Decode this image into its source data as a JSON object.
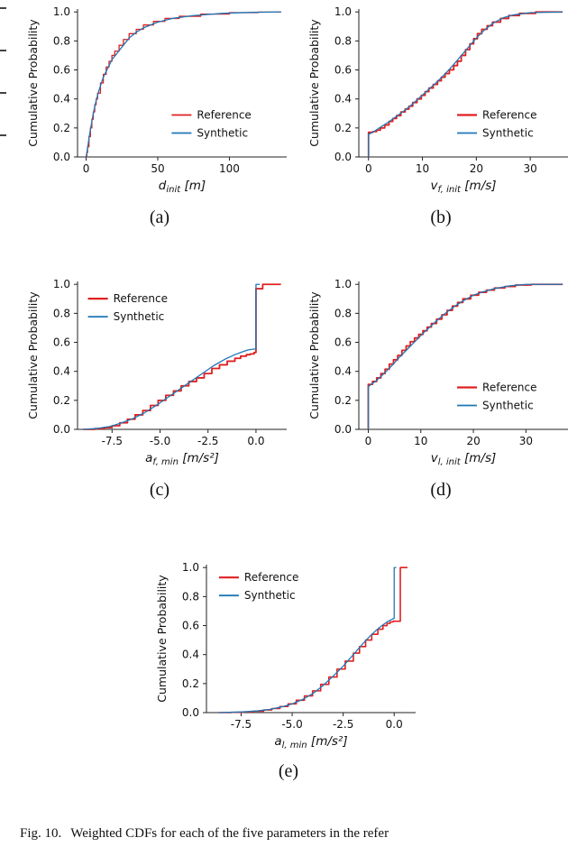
{
  "figure": {
    "subplot_labels": [
      "(a)",
      "(b)",
      "(c)",
      "(d)",
      "(e)"
    ],
    "caption_label": "Fig. 10.",
    "caption_text": "Weighted CDFs for each of the five parameters in the refer"
  },
  "style": {
    "axis_color": "#222222",
    "text_color": "#111111",
    "reference_color": "#e02020",
    "synthetic_color": "#1f77b4"
  },
  "chart_data": [
    {
      "id": "a",
      "type": "line",
      "ylabel": "Cumulative Probability",
      "xlabel": {
        "base": "d",
        "sub": "init",
        "unit": "[m]"
      },
      "xlim": [
        -6,
        140
      ],
      "ylim": [
        0,
        1.02
      ],
      "xticks": [
        [
          0,
          "0"
        ],
        [
          50,
          "50"
        ],
        [
          100,
          "100"
        ]
      ],
      "yticks": [
        [
          0,
          "0.0"
        ],
        [
          0.2,
          "0.2"
        ],
        [
          0.4,
          "0.4"
        ],
        [
          0.6,
          "0.6"
        ],
        [
          0.8,
          "0.8"
        ],
        [
          1.0,
          "1.0"
        ]
      ],
      "grid": false,
      "legend_pos": [
        0.45,
        0.68
      ],
      "series": [
        {
          "name": "Reference",
          "color": "#e02020",
          "width": 1.3,
          "step": true,
          "x": [
            0,
            0.5,
            1,
            2,
            3,
            4,
            5,
            6,
            7,
            8,
            10,
            12,
            14,
            16,
            18,
            20,
            23,
            26,
            30,
            35,
            40,
            47,
            55,
            65,
            80,
            100,
            120,
            136
          ],
          "y": [
            0,
            0.03,
            0.07,
            0.14,
            0.2,
            0.26,
            0.31,
            0.36,
            0.4,
            0.44,
            0.51,
            0.57,
            0.62,
            0.66,
            0.7,
            0.73,
            0.77,
            0.81,
            0.85,
            0.88,
            0.91,
            0.935,
            0.955,
            0.97,
            0.985,
            0.995,
            0.999,
            1.0
          ]
        },
        {
          "name": "Synthetic",
          "color": "#1f77b4",
          "width": 1.3,
          "step": false,
          "x": [
            0,
            1,
            2,
            3,
            5,
            7,
            9,
            12,
            15,
            18,
            22,
            26,
            30,
            35,
            40,
            50,
            60,
            75,
            95,
            115,
            136
          ],
          "y": [
            0,
            0.06,
            0.13,
            0.19,
            0.3,
            0.39,
            0.46,
            0.55,
            0.61,
            0.67,
            0.72,
            0.77,
            0.82,
            0.86,
            0.89,
            0.93,
            0.955,
            0.975,
            0.99,
            0.997,
            1.0
          ]
        }
      ]
    },
    {
      "id": "b",
      "type": "line",
      "ylabel": "Cumulative Probability",
      "xlabel": {
        "base": "v",
        "sub": "f, init",
        "unit": "[m/s]"
      },
      "xlim": [
        -1.8,
        37
      ],
      "ylim": [
        0,
        1.02
      ],
      "xticks": [
        [
          0,
          "0"
        ],
        [
          10,
          "10"
        ],
        [
          20,
          "20"
        ],
        [
          30,
          "30"
        ]
      ],
      "yticks": [
        [
          0,
          "0.0"
        ],
        [
          0.2,
          "0.2"
        ],
        [
          0.4,
          "0.4"
        ],
        [
          0.6,
          "0.6"
        ],
        [
          0.8,
          "0.8"
        ],
        [
          1.0,
          "1.0"
        ]
      ],
      "grid": false,
      "legend_pos": [
        0.47,
        0.68
      ],
      "series": [
        {
          "name": "Reference",
          "color": "#e02020",
          "width": 1.8,
          "step": true,
          "x": [
            0,
            0,
            0.8,
            1.5,
            2.2,
            3,
            3.8,
            4.5,
            5.2,
            6,
            6.8,
            7.5,
            8.2,
            9,
            9.8,
            10.5,
            11.2,
            12,
            12.8,
            13.5,
            14.2,
            15,
            15.8,
            16.5,
            17.2,
            18,
            18.8,
            19.5,
            20.2,
            21,
            22,
            23,
            24.5,
            26,
            28,
            31,
            36
          ],
          "y": [
            0,
            0.17,
            0.175,
            0.185,
            0.2,
            0.22,
            0.245,
            0.265,
            0.285,
            0.31,
            0.33,
            0.35,
            0.375,
            0.4,
            0.425,
            0.45,
            0.475,
            0.5,
            0.525,
            0.55,
            0.575,
            0.6,
            0.63,
            0.66,
            0.7,
            0.74,
            0.78,
            0.815,
            0.85,
            0.88,
            0.905,
            0.93,
            0.955,
            0.975,
            0.99,
            1.0,
            1.0
          ]
        },
        {
          "name": "Synthetic",
          "color": "#1f77b4",
          "width": 1.3,
          "step": false,
          "x": [
            0,
            0,
            1,
            2,
            3.5,
            5,
            6.5,
            8,
            9.5,
            11,
            12.5,
            14,
            15.5,
            17,
            18.5,
            20,
            21.5,
            23,
            25,
            27,
            30,
            36
          ],
          "y": [
            0,
            0.155,
            0.175,
            0.2,
            0.235,
            0.275,
            0.315,
            0.36,
            0.41,
            0.46,
            0.51,
            0.565,
            0.625,
            0.69,
            0.755,
            0.82,
            0.875,
            0.92,
            0.96,
            0.98,
            0.995,
            1.0
          ]
        }
      ]
    },
    {
      "id": "c",
      "type": "line",
      "ylabel": "Cumulative Probability",
      "xlabel": {
        "base": "a",
        "sub": "f, min",
        "unit": "[m/s²]"
      },
      "xlim": [
        -9.3,
        1.6
      ],
      "ylim": [
        0,
        1.02
      ],
      "xticks": [
        [
          -7.5,
          "-7.5"
        ],
        [
          -5.0,
          "-5.0"
        ],
        [
          -2.5,
          "-2.5"
        ],
        [
          0.0,
          "0.0"
        ]
      ],
      "yticks": [
        [
          0,
          "0.0"
        ],
        [
          0.2,
          "0.2"
        ],
        [
          0.4,
          "0.4"
        ],
        [
          0.6,
          "0.6"
        ],
        [
          0.8,
          "0.8"
        ],
        [
          1.0,
          "1.0"
        ]
      ],
      "grid": false,
      "legend_pos": [
        0.05,
        0.08
      ],
      "series": [
        {
          "name": "Reference",
          "color": "#e02020",
          "width": 1.8,
          "step": true,
          "x": [
            -9,
            -8.4,
            -7.9,
            -7.5,
            -7.1,
            -6.7,
            -6.3,
            -5.9,
            -5.5,
            -5.1,
            -4.7,
            -4.3,
            -3.9,
            -3.5,
            -3.1,
            -2.7,
            -2.3,
            -1.9,
            -1.5,
            -1.1,
            -0.8,
            -0.5,
            -0.3,
            -0.1,
            0,
            0,
            0.35,
            0.35,
            1.3
          ],
          "y": [
            0,
            0.005,
            0.012,
            0.025,
            0.045,
            0.07,
            0.1,
            0.13,
            0.165,
            0.2,
            0.235,
            0.265,
            0.3,
            0.33,
            0.355,
            0.385,
            0.42,
            0.445,
            0.47,
            0.49,
            0.505,
            0.515,
            0.52,
            0.53,
            0.535,
            0.97,
            0.97,
            1.0,
            1.0
          ]
        },
        {
          "name": "Synthetic",
          "color": "#1f77b4",
          "width": 1.3,
          "step": false,
          "x": [
            -9,
            -8.3,
            -7.6,
            -7,
            -6.4,
            -5.8,
            -5.2,
            -4.6,
            -4,
            -3.4,
            -2.8,
            -2.2,
            -1.6,
            -1.1,
            -0.7,
            -0.4,
            -0.15,
            0,
            0,
            0.2
          ],
          "y": [
            0,
            0.006,
            0.02,
            0.045,
            0.075,
            0.115,
            0.165,
            0.22,
            0.275,
            0.33,
            0.385,
            0.44,
            0.485,
            0.515,
            0.535,
            0.548,
            0.553,
            0.555,
            1.0,
            1.0
          ]
        }
      ]
    },
    {
      "id": "d",
      "type": "line",
      "ylabel": "Cumulative Probability",
      "xlabel": {
        "base": "v",
        "sub": "l, init",
        "unit": "[m/s]"
      },
      "xlim": [
        -1.8,
        38
      ],
      "ylim": [
        0,
        1.02
      ],
      "xticks": [
        [
          0,
          "0"
        ],
        [
          10,
          "10"
        ],
        [
          20,
          "20"
        ],
        [
          30,
          "30"
        ]
      ],
      "yticks": [
        [
          0,
          "0.0"
        ],
        [
          0.2,
          "0.2"
        ],
        [
          0.4,
          "0.4"
        ],
        [
          0.6,
          "0.6"
        ],
        [
          0.8,
          "0.8"
        ],
        [
          1.0,
          "1.0"
        ]
      ],
      "grid": false,
      "legend_pos": [
        0.47,
        0.68
      ],
      "series": [
        {
          "name": "Reference",
          "color": "#e02020",
          "width": 1.8,
          "step": true,
          "x": [
            0,
            0,
            0.8,
            1.6,
            2.4,
            3.2,
            4,
            4.8,
            5.6,
            6.4,
            7.2,
            8,
            8.8,
            9.6,
            10.4,
            11.2,
            12,
            13,
            14,
            15,
            16,
            17,
            18,
            19.5,
            21,
            22.5,
            24,
            26,
            28,
            31,
            37
          ],
          "y": [
            0,
            0.31,
            0.33,
            0.355,
            0.385,
            0.415,
            0.45,
            0.48,
            0.51,
            0.545,
            0.575,
            0.605,
            0.63,
            0.655,
            0.68,
            0.705,
            0.73,
            0.76,
            0.79,
            0.82,
            0.85,
            0.875,
            0.9,
            0.925,
            0.945,
            0.96,
            0.975,
            0.985,
            0.995,
            1.0,
            1.0
          ]
        },
        {
          "name": "Synthetic",
          "color": "#1f77b4",
          "width": 1.3,
          "step": false,
          "x": [
            0,
            0,
            1.5,
            3,
            4.5,
            6,
            7.5,
            9,
            10.5,
            12,
            13.5,
            15,
            16.5,
            18,
            20,
            22,
            24,
            27,
            30,
            37
          ],
          "y": [
            0,
            0.295,
            0.335,
            0.385,
            0.44,
            0.5,
            0.555,
            0.61,
            0.665,
            0.715,
            0.765,
            0.81,
            0.85,
            0.885,
            0.925,
            0.95,
            0.97,
            0.99,
            1.0,
            1.0
          ]
        }
      ]
    },
    {
      "id": "e",
      "type": "line",
      "ylabel": "Cumulative Probability",
      "xlabel": {
        "base": "a",
        "sub": "l, min",
        "unit": "[m/s²]"
      },
      "xlim": [
        -9.2,
        1.05
      ],
      "ylim": [
        0,
        1.02
      ],
      "xticks": [
        [
          -7.5,
          "-7.5"
        ],
        [
          -5.0,
          "-5.0"
        ],
        [
          -2.5,
          "-2.5"
        ],
        [
          0.0,
          "0.0"
        ]
      ],
      "yticks": [
        [
          0,
          "0.0"
        ],
        [
          0.2,
          "0.2"
        ],
        [
          0.4,
          "0.4"
        ],
        [
          0.6,
          "0.6"
        ],
        [
          0.8,
          "0.8"
        ],
        [
          1.0,
          "1.0"
        ]
      ],
      "grid": false,
      "legend_pos": [
        0.06,
        0.05
      ],
      "series": [
        {
          "name": "Reference",
          "color": "#e02020",
          "width": 1.6,
          "step": true,
          "x": [
            -8.6,
            -8,
            -7.4,
            -6.9,
            -6.4,
            -6,
            -5.6,
            -5.2,
            -4.8,
            -4.4,
            -4,
            -3.6,
            -3.2,
            -2.8,
            -2.4,
            -2,
            -1.7,
            -1.4,
            -1.1,
            -0.8,
            -0.55,
            -0.35,
            -0.2,
            -0.05,
            0.3,
            0.3,
            0.65
          ],
          "y": [
            0,
            0.002,
            0.005,
            0.01,
            0.018,
            0.028,
            0.042,
            0.06,
            0.085,
            0.115,
            0.15,
            0.195,
            0.245,
            0.3,
            0.355,
            0.41,
            0.455,
            0.5,
            0.54,
            0.575,
            0.6,
            0.615,
            0.625,
            0.63,
            0.63,
            1.0,
            1.0
          ]
        },
        {
          "name": "Synthetic",
          "color": "#1f77b4",
          "width": 1.3,
          "step": false,
          "x": [
            -8.6,
            -8,
            -7.3,
            -6.7,
            -6.1,
            -5.5,
            -5,
            -4.5,
            -4,
            -3.5,
            -3,
            -2.5,
            -2,
            -1.6,
            -1.2,
            -0.9,
            -0.6,
            -0.35,
            -0.15,
            0,
            0,
            0.1
          ],
          "y": [
            0,
            0.002,
            0.006,
            0.012,
            0.022,
            0.04,
            0.06,
            0.09,
            0.13,
            0.185,
            0.25,
            0.32,
            0.4,
            0.465,
            0.525,
            0.565,
            0.6,
            0.625,
            0.64,
            0.65,
            1.0,
            1.0
          ]
        }
      ]
    }
  ]
}
